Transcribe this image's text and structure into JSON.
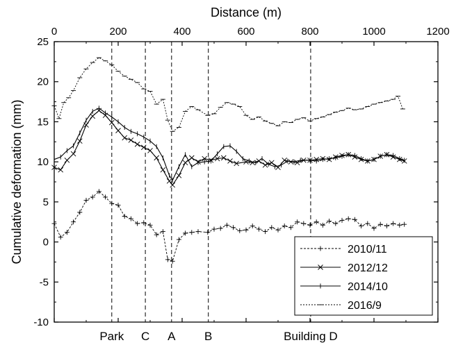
{
  "chart_data": {
    "type": "line",
    "xlabel_top": "Distance (m)",
    "ylabel": "Cumulative deformation (mm)",
    "xlim": [
      0,
      1200
    ],
    "ylim": [
      -10,
      25
    ],
    "x_ticks": [
      "0",
      "200",
      "400",
      "600",
      "800",
      "1000",
      "1200"
    ],
    "y_ticks": [
      "-10",
      "-5",
      "0",
      "5",
      "10",
      "15",
      "20",
      "25"
    ],
    "grid": false,
    "legend_position": "bottom-right",
    "markers": [
      {
        "label": "Park",
        "x": 180
      },
      {
        "label": "C",
        "x": 285
      },
      {
        "label": "A",
        "x": 367
      },
      {
        "label": "B",
        "x": 482
      },
      {
        "label": "Building D",
        "x": 802
      }
    ],
    "series": [
      {
        "name": "2010/11",
        "style": "plus",
        "x": [
          0,
          20,
          40,
          60,
          80,
          100,
          120,
          140,
          160,
          180,
          200,
          220,
          240,
          260,
          280,
          300,
          320,
          340,
          355,
          370,
          390,
          410,
          430,
          450,
          480,
          500,
          520,
          540,
          560,
          580,
          600,
          620,
          640,
          660,
          680,
          700,
          720,
          740,
          760,
          780,
          800,
          820,
          840,
          860,
          880,
          900,
          920,
          940,
          960,
          980,
          1000,
          1020,
          1040,
          1060,
          1080,
          1095
        ],
        "y": [
          2.3,
          0.6,
          1.2,
          2.5,
          3.7,
          5.2,
          5.6,
          6.3,
          5.6,
          4.8,
          4.6,
          3.2,
          2.9,
          2.3,
          2.4,
          2.1,
          0.9,
          1.3,
          -2.2,
          -2.4,
          0.3,
          1.1,
          1.2,
          1.3,
          1.2,
          1.6,
          1.7,
          2.1,
          1.8,
          1.4,
          1.5,
          2.0,
          1.6,
          1.3,
          1.8,
          1.5,
          2.0,
          1.8,
          2.5,
          2.3,
          2.1,
          2.5,
          2.1,
          2.6,
          2.3,
          2.7,
          2.9,
          2.8,
          2.0,
          2.3,
          1.7,
          2.2,
          2.0,
          2.3,
          2.1,
          2.2
        ]
      },
      {
        "name": "2012/12",
        "style": "cross",
        "x": [
          0,
          20,
          40,
          60,
          80,
          100,
          120,
          140,
          160,
          180,
          200,
          220,
          240,
          260,
          280,
          300,
          320,
          340,
          360,
          370,
          390,
          410,
          430,
          450,
          470,
          490,
          510,
          530,
          550,
          570,
          600,
          620,
          640,
          660,
          680,
          700,
          720,
          740,
          760,
          780,
          800,
          820,
          840,
          860,
          880,
          900,
          920,
          940,
          960,
          980,
          1000,
          1020,
          1040,
          1060,
          1080,
          1095
        ],
        "y": [
          9.3,
          9.0,
          10.2,
          11.0,
          12.6,
          14.6,
          15.7,
          16.4,
          15.8,
          14.9,
          13.9,
          13.0,
          12.7,
          12.2,
          11.8,
          11.4,
          10.5,
          9.0,
          7.6,
          7.1,
          8.3,
          9.9,
          10.5,
          10.0,
          10.4,
          10.2,
          10.4,
          10.5,
          10.1,
          9.8,
          10.0,
          9.9,
          10.1,
          9.6,
          9.9,
          9.3,
          10.2,
          10.0,
          9.9,
          10.2,
          10.2,
          10.3,
          10.4,
          10.3,
          10.6,
          10.8,
          10.9,
          10.6,
          10.3,
          10.1,
          10.3,
          10.7,
          10.9,
          10.6,
          10.3,
          10.1
        ]
      },
      {
        "name": "2014/10",
        "style": "vtick",
        "x": [
          0,
          20,
          40,
          60,
          80,
          100,
          120,
          140,
          160,
          180,
          200,
          220,
          240,
          260,
          280,
          300,
          320,
          340,
          360,
          370,
          390,
          410,
          430,
          450,
          470,
          490,
          510,
          530,
          550,
          570,
          590,
          610,
          630,
          650,
          670,
          690,
          710,
          730,
          750,
          770,
          800,
          820,
          840,
          860,
          880,
          900,
          920,
          940,
          960,
          980,
          1000,
          1020,
          1040,
          1060,
          1080,
          1095
        ],
        "y": [
          10.3,
          10.6,
          11.4,
          12.0,
          13.6,
          15.2,
          16.3,
          16.7,
          16.1,
          15.6,
          15.0,
          14.3,
          13.8,
          13.5,
          13.1,
          12.6,
          11.9,
          10.5,
          8.3,
          7.7,
          9.4,
          10.9,
          9.4,
          9.9,
          10.0,
          10.1,
          11.0,
          11.9,
          12.0,
          11.3,
          10.4,
          10.1,
          9.9,
          10.4,
          9.7,
          9.4,
          9.6,
          10.1,
          10.0,
          10.2,
          10.2,
          10.1,
          10.3,
          10.4,
          10.5,
          10.7,
          10.9,
          10.8,
          10.4,
          10.1,
          10.3,
          10.7,
          10.9,
          10.8,
          10.4,
          10.2
        ]
      },
      {
        "name": "2016/9",
        "style": "htick",
        "x": [
          0,
          15,
          30,
          45,
          60,
          80,
          100,
          120,
          140,
          160,
          180,
          200,
          220,
          240,
          260,
          280,
          300,
          320,
          340,
          355,
          370,
          390,
          410,
          430,
          450,
          480,
          500,
          520,
          540,
          560,
          580,
          600,
          620,
          640,
          660,
          680,
          700,
          720,
          740,
          760,
          780,
          800,
          820,
          840,
          860,
          880,
          900,
          920,
          940,
          960,
          980,
          1000,
          1020,
          1040,
          1060,
          1075,
          1090
        ],
        "y": [
          17.0,
          15.4,
          17.4,
          18.0,
          18.9,
          20.5,
          21.6,
          22.4,
          23.0,
          22.6,
          22.1,
          21.3,
          20.7,
          20.3,
          19.9,
          19.1,
          18.8,
          17.2,
          17.8,
          15.2,
          13.8,
          14.3,
          16.3,
          16.9,
          16.5,
          15.8,
          16.0,
          16.8,
          17.4,
          17.2,
          16.9,
          15.8,
          15.3,
          15.6,
          15.1,
          14.8,
          14.5,
          15.0,
          14.9,
          15.3,
          15.5,
          15.1,
          15.4,
          15.6,
          15.9,
          16.2,
          16.4,
          16.7,
          16.5,
          16.6,
          16.9,
          17.2,
          17.4,
          17.6,
          17.8,
          18.2,
          16.6
        ]
      }
    ]
  }
}
